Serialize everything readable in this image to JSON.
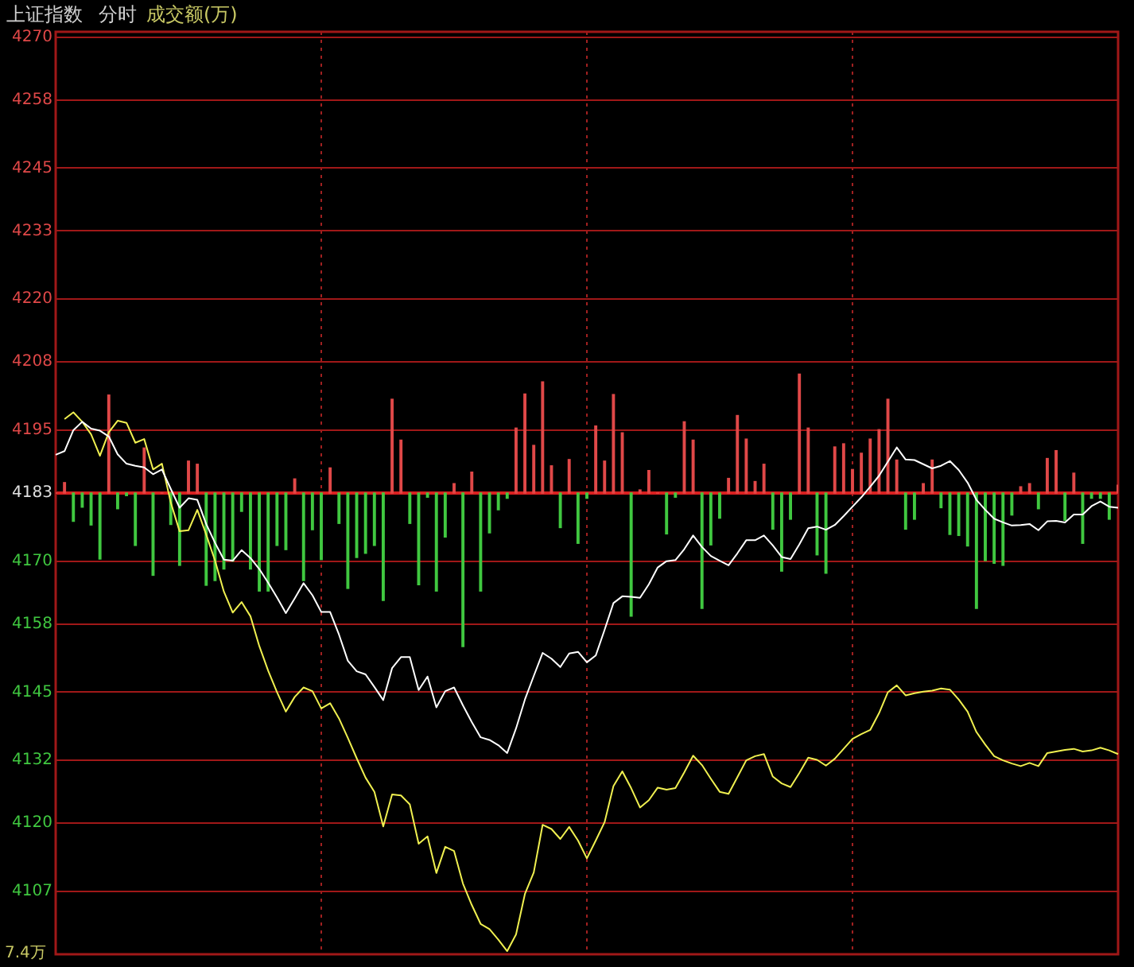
{
  "chart_data": {
    "type": "line",
    "title": "上证指数",
    "subtitle": "分时",
    "annotations": [
      "成交额(万)",
      "7.4万"
    ],
    "categories": [
      null,
      null,
      null,
      null,
      null,
      null,
      null,
      null,
      null,
      null,
      null,
      null,
      null,
      null,
      null,
      null,
      null,
      null,
      null,
      null,
      null,
      null,
      null,
      null,
      null,
      null,
      null,
      null,
      null,
      null,
      null,
      null,
      null,
      null,
      null,
      null,
      null,
      null,
      null,
      null,
      null,
      null,
      null,
      null,
      null,
      null,
      null,
      null,
      null,
      null,
      null,
      null,
      null,
      null,
      null,
      null,
      null,
      null,
      null,
      null,
      null,
      null,
      null,
      null,
      null,
      null,
      null,
      null,
      null,
      null,
      null,
      null,
      null,
      null,
      null,
      null,
      null,
      null,
      null,
      null,
      null,
      null,
      null,
      null,
      null,
      null,
      null,
      null,
      null,
      null,
      null,
      null,
      null,
      null,
      null,
      null,
      null,
      null,
      null,
      null,
      null,
      null,
      null,
      null,
      null,
      null,
      null,
      null,
      null,
      null,
      null,
      null,
      null,
      null,
      null,
      null,
      null,
      null,
      null,
      null,
      null
    ],
    "ylim": [
      4095,
      4271
    ],
    "yticks": [
      4270,
      4258,
      4245,
      4233,
      4220,
      4208,
      4195,
      4183,
      4170,
      4158,
      4145,
      4132,
      4120,
      4107
    ],
    "tick_labels": "y",
    "grid": true,
    "marker": "none",
    "ref_lines": [
      {
        "axis": "y",
        "value": 4183,
        "color": "#d82020"
      }
    ],
    "series": [
      {
        "color": "#ffffff",
        "values": [
          4190.3,
          4191.0,
          4195.0,
          4196.6,
          4195.3,
          4194.9,
          4193.8,
          4190.4,
          4188.6,
          4188.2,
          4187.9,
          4186.6,
          4187.5,
          4183.8,
          4180.2,
          4182.0,
          4181.7,
          4177.1,
          4173.5,
          4170.3,
          4170.1,
          4172.1,
          4170.6,
          4168.5,
          4165.9,
          4163.1,
          4160.1,
          4162.9,
          4165.8,
          4163.5,
          4160.3,
          4160.3,
          4156.0,
          4151.0,
          4149.0,
          4148.4,
          4146.0,
          4143.5,
          4149.6,
          4151.7,
          4151.7,
          4145.4,
          4148.0,
          4142.1,
          4145.2,
          4145.9,
          4142.5,
          4139.3,
          4136.4,
          4135.9,
          4134.9,
          4133.4,
          4138.1,
          4143.6,
          4148.1,
          4152.5,
          4151.4,
          4149.8,
          4152.4,
          4152.7,
          4150.7,
          4152.0,
          4156.9,
          4162.0,
          4163.3,
          4163.2,
          4163.0,
          4165.6,
          4168.8,
          4170.0,
          4170.2,
          4172.3,
          4174.9,
          4172.7,
          4171.0,
          4170.1,
          4169.2,
          4171.5,
          4174.0,
          4174.0,
          4174.9,
          4173.0,
          4170.8,
          4170.4,
          4173.2,
          4176.3,
          4176.6,
          4176.0,
          4176.9,
          4178.6,
          4180.4,
          4182.2,
          4184.2,
          4186.3,
          4189.0,
          4191.7,
          4189.4,
          4189.3,
          4188.5,
          4187.7,
          4188.2,
          4189.1,
          4187.4,
          4185.0,
          4181.7,
          4179.8,
          4178.1,
          4177.4,
          4176.8,
          4176.9,
          4177.1,
          4175.9,
          4177.6,
          4177.7,
          4177.4,
          4178.9,
          4178.9,
          4180.5,
          4181.4,
          4180.4,
          4180.2
        ]
      },
      {
        "color": "#f0f050",
        "values": [
          null,
          4197.1,
          4198.4,
          4196.6,
          4194.2,
          4190.1,
          4194.6,
          4196.8,
          4196.4,
          4192.6,
          4193.3,
          4187.5,
          4188.6,
          4181.2,
          4175.7,
          4175.9,
          4179.8,
          4175.1,
          4170.1,
          4164.2,
          4160.2,
          4162.2,
          4159.5,
          4153.8,
          4149.1,
          4145.0,
          4141.3,
          4144.1,
          4145.9,
          4145.2,
          4141.9,
          4142.9,
          4140.0,
          4136.3,
          4132.4,
          4128.7,
          4126.0,
          4119.4,
          4125.5,
          4125.3,
          4123.6,
          4116.1,
          4117.5,
          4110.5,
          4115.5,
          4114.7,
          4108.5,
          4104.4,
          4100.8,
          4099.8,
          4097.8,
          4095.6,
          4098.8,
          4106.5,
          4110.6,
          4119.7,
          4118.9,
          4117.0,
          4119.3,
          4116.7,
          4113.3,
          4116.7,
          4120.2,
          4127.1,
          4129.9,
          4126.7,
          4123.0,
          4124.4,
          4126.8,
          4126.4,
          4126.7,
          4129.7,
          4132.9,
          4131.1,
          4128.5,
          4126.0,
          4125.6,
          4128.8,
          4132.0,
          4132.8,
          4133.2,
          4128.9,
          4127.6,
          4126.9,
          4129.6,
          4132.5,
          4132.1,
          4131.0,
          4132.3,
          4134.2,
          4136.1,
          4137.0,
          4137.8,
          4141.0,
          4145.0,
          4146.3,
          4144.4,
          4144.8,
          4145.1,
          4145.3,
          4145.7,
          4145.5,
          4143.6,
          4141.3,
          4137.4,
          4135.0,
          4132.8,
          4132.0,
          4131.4,
          4130.9,
          4131.5,
          4130.9,
          4133.4,
          4133.7,
          4134.0,
          4134.2,
          4133.7,
          4133.9,
          4134.4,
          4133.9,
          4133.2
        ]
      },
      {
        "type": "bar",
        "values": [
          0,
          2.0,
          -5.4,
          -2.7,
          -6.1,
          -12.6,
          18.7,
          -3.0,
          -0.5,
          -10.0,
          8.6,
          -15.7,
          0,
          -6.0,
          -13.8,
          6.1,
          5.5,
          -17.6,
          -16.7,
          -14.5,
          -13.0,
          -3.5,
          -14.5,
          -18.7,
          -18.7,
          -10.0,
          -10.8,
          2.7,
          -16.7,
          -7.0,
          -12.7,
          4.8,
          -5.8,
          -18.2,
          -12.3,
          -11.5,
          -10.0,
          -20.5,
          17.9,
          10.1,
          -5.8,
          -17.5,
          -0.8,
          -18.7,
          -8.4,
          1.8,
          -29.3,
          4.0,
          -18.7,
          -7.6,
          -3.2,
          -1.0,
          12.4,
          18.9,
          9.1,
          21.2,
          5.2,
          -6.6,
          6.4,
          -9.6,
          -1.0,
          12.8,
          6.1,
          18.8,
          11.5,
          -23.5,
          0.6,
          4.3,
          0,
          -7.8,
          -0.8,
          13.6,
          10.1,
          -22.0,
          -9.9,
          -4.8,
          2.8,
          14.8,
          10.3,
          2.2,
          5.5,
          -6.9,
          -14.9,
          -5.0,
          22.7,
          12.4,
          -11.8,
          -15.3,
          8.8,
          9.4,
          4.5,
          7.6,
          10.3,
          12.1,
          17.9,
          6.3,
          -6.9,
          -5.0,
          1.8,
          6.3,
          -2.8,
          -7.9,
          -8.1,
          -10.1,
          -22.0,
          -12.9,
          -13.4,
          -13.8,
          -4.2,
          1.2,
          1.8,
          -3.0,
          6.6,
          8.1,
          -5.2,
          3.8,
          -9.6,
          -1.0,
          -1.0,
          -5.0,
          1.5
        ],
        "colors": [
          "#e04848",
          "#e04848",
          "#40c840",
          "#40c840",
          "#40c840",
          "#40c840",
          "#e04848",
          "#40c840",
          "#40c840",
          "#40c840",
          "#e04848",
          "#40c840",
          "#e04848",
          "#40c840",
          "#40c840",
          "#e04848",
          "#e04848",
          "#40c840",
          "#40c840",
          "#40c840",
          "#40c840",
          "#40c840",
          "#40c840",
          "#40c840",
          "#40c840",
          "#40c840",
          "#40c840",
          "#e04848",
          "#40c840",
          "#40c840",
          "#40c840",
          "#e04848",
          "#40c840",
          "#40c840",
          "#40c840",
          "#40c840",
          "#40c840",
          "#40c840",
          "#e04848",
          "#e04848",
          "#40c840",
          "#40c840",
          "#40c840",
          "#40c840",
          "#40c840",
          "#e04848",
          "#40c840",
          "#e04848",
          "#40c840",
          "#40c840",
          "#40c840",
          "#40c840",
          "#e04848",
          "#e04848",
          "#e04848",
          "#e04848",
          "#e04848",
          "#40c840",
          "#e04848",
          "#40c840",
          "#40c840",
          "#e04848",
          "#e04848",
          "#e04848",
          "#e04848",
          "#40c840",
          "#e04848",
          "#e04848",
          "#e04848",
          "#40c840",
          "#40c840",
          "#e04848",
          "#e04848",
          "#40c840",
          "#40c840",
          "#40c840",
          "#e04848",
          "#e04848",
          "#e04848",
          "#e04848",
          "#e04848",
          "#40c840",
          "#40c840",
          "#40c840",
          "#e04848",
          "#e04848",
          "#40c840",
          "#40c840",
          "#e04848",
          "#e04848",
          "#e04848",
          "#e04848",
          "#e04848",
          "#e04848",
          "#e04848",
          "#e04848",
          "#40c840",
          "#40c840",
          "#e04848",
          "#e04848",
          "#40c840",
          "#40c840",
          "#40c840",
          "#40c840",
          "#40c840",
          "#40c840",
          "#40c840",
          "#40c840",
          "#40c840",
          "#e04848",
          "#e04848",
          "#40c840",
          "#e04848",
          "#e04848",
          "#40c840",
          "#e04848",
          "#40c840",
          "#40c840",
          "#40c840",
          "#40c840",
          "#e04848"
        ],
        "base": [
          4183,
          4183,
          4183,
          4183,
          4183,
          4183,
          4183,
          4183,
          4183,
          4183,
          4183,
          4183,
          4183,
          4183,
          4183,
          4183,
          4183,
          4183,
          4183,
          4183,
          4183,
          4183,
          4183,
          4183,
          4183,
          4183,
          4183,
          4183,
          4183,
          4183,
          4183,
          4183,
          4183,
          4183,
          4183,
          4183,
          4183,
          4183,
          4183,
          4183,
          4183,
          4183,
          4183,
          4183,
          4183,
          4183,
          4183,
          4183,
          4183,
          4183,
          4183,
          4183,
          4183,
          4183,
          4183,
          4183,
          4183,
          4183,
          4183,
          4183,
          4183,
          4183,
          4183,
          4183,
          4183,
          4183,
          4183,
          4183,
          4183,
          4183,
          4183,
          4183,
          4183,
          4183,
          4183,
          4183,
          4183,
          4183,
          4183,
          4183,
          4183,
          4183,
          4183,
          4183,
          4183,
          4183,
          4183,
          4183,
          4183,
          4183,
          4183,
          4183,
          4183,
          4183,
          4183,
          4183,
          4183,
          4183,
          4183,
          4183,
          4183,
          4183,
          4183,
          4183,
          4183,
          4183,
          4183,
          4183,
          4183,
          4183,
          4183,
          4183,
          4183,
          4183,
          4183,
          4183,
          4183,
          4183,
          4183,
          4183,
          4183
        ]
      }
    ]
  }
}
